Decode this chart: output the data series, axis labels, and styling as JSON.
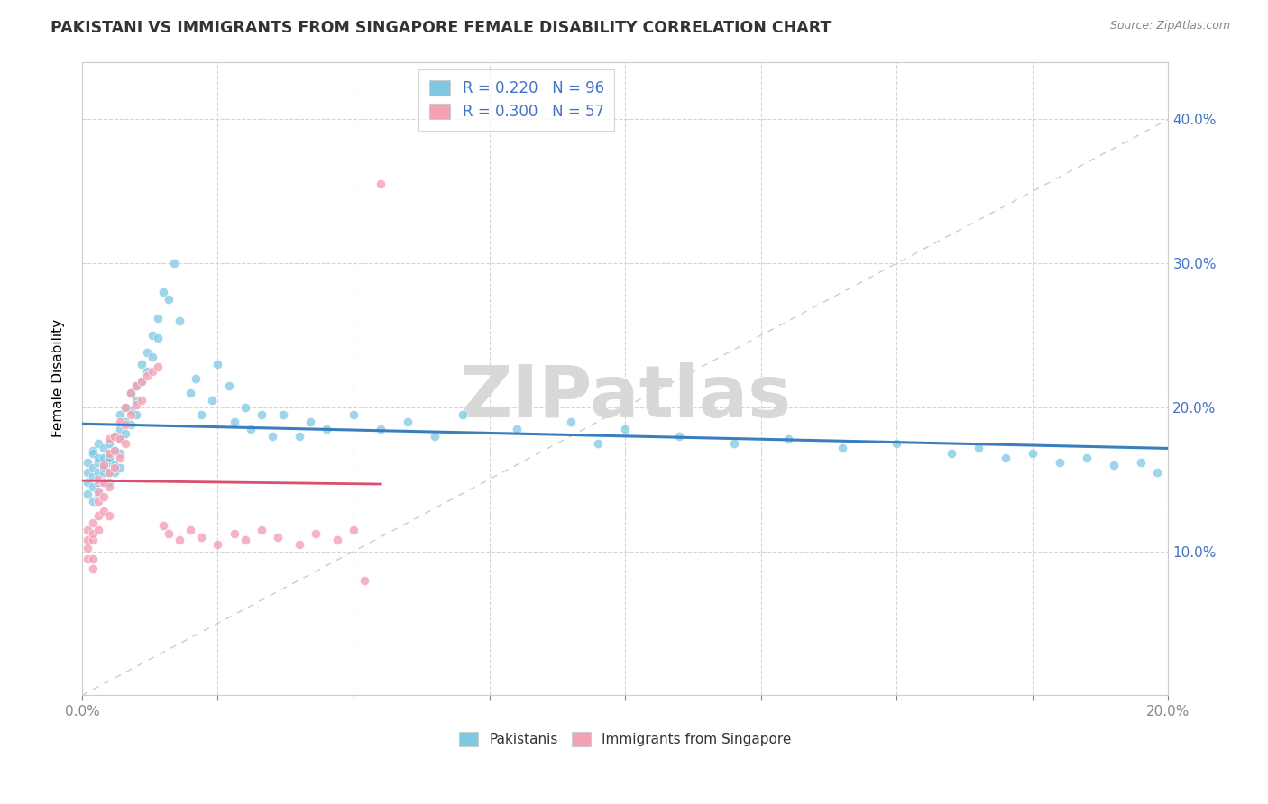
{
  "title": "PAKISTANI VS IMMIGRANTS FROM SINGAPORE FEMALE DISABILITY CORRELATION CHART",
  "source": "Source: ZipAtlas.com",
  "ylabel": "Female Disability",
  "xlim": [
    0.0,
    0.2
  ],
  "ylim": [
    0.0,
    0.44
  ],
  "blue_color": "#7ec8e3",
  "pink_color": "#f4a0b5",
  "blue_line_color": "#3a7ebf",
  "pink_line_color": "#d94f70",
  "ref_line_color": "#cccccc",
  "watermark_text": "ZIPatlas",
  "watermark_color": "#d8d8d8",
  "watermark_fontsize": 58,
  "pakistanis_x": [
    0.001,
    0.001,
    0.001,
    0.001,
    0.002,
    0.002,
    0.002,
    0.002,
    0.002,
    0.002,
    0.003,
    0.003,
    0.003,
    0.003,
    0.003,
    0.003,
    0.004,
    0.004,
    0.004,
    0.004,
    0.004,
    0.004,
    0.005,
    0.005,
    0.005,
    0.005,
    0.005,
    0.005,
    0.006,
    0.006,
    0.006,
    0.006,
    0.007,
    0.007,
    0.007,
    0.007,
    0.007,
    0.008,
    0.008,
    0.008,
    0.009,
    0.009,
    0.009,
    0.01,
    0.01,
    0.01,
    0.011,
    0.011,
    0.012,
    0.012,
    0.013,
    0.013,
    0.014,
    0.014,
    0.015,
    0.016,
    0.017,
    0.018,
    0.02,
    0.021,
    0.022,
    0.024,
    0.025,
    0.027,
    0.028,
    0.03,
    0.031,
    0.033,
    0.035,
    0.037,
    0.04,
    0.042,
    0.045,
    0.05,
    0.055,
    0.06,
    0.065,
    0.07,
    0.08,
    0.09,
    0.095,
    0.1,
    0.11,
    0.12,
    0.13,
    0.14,
    0.15,
    0.16,
    0.165,
    0.17,
    0.175,
    0.18,
    0.185,
    0.19,
    0.195,
    0.198
  ],
  "pakistanis_y": [
    0.155,
    0.162,
    0.148,
    0.14,
    0.17,
    0.158,
    0.145,
    0.135,
    0.152,
    0.168,
    0.175,
    0.162,
    0.155,
    0.148,
    0.14,
    0.165,
    0.172,
    0.16,
    0.155,
    0.148,
    0.165,
    0.158,
    0.175,
    0.168,
    0.162,
    0.155,
    0.148,
    0.165,
    0.18,
    0.17,
    0.16,
    0.155,
    0.195,
    0.185,
    0.178,
    0.168,
    0.158,
    0.2,
    0.19,
    0.182,
    0.21,
    0.198,
    0.188,
    0.215,
    0.205,
    0.195,
    0.23,
    0.218,
    0.238,
    0.225,
    0.25,
    0.235,
    0.262,
    0.248,
    0.28,
    0.275,
    0.3,
    0.26,
    0.21,
    0.22,
    0.195,
    0.205,
    0.23,
    0.215,
    0.19,
    0.2,
    0.185,
    0.195,
    0.18,
    0.195,
    0.18,
    0.19,
    0.185,
    0.195,
    0.185,
    0.19,
    0.18,
    0.195,
    0.185,
    0.19,
    0.175,
    0.185,
    0.18,
    0.175,
    0.178,
    0.172,
    0.175,
    0.168,
    0.172,
    0.165,
    0.168,
    0.162,
    0.165,
    0.16,
    0.162,
    0.155
  ],
  "singapore_x": [
    0.001,
    0.001,
    0.001,
    0.001,
    0.002,
    0.002,
    0.002,
    0.002,
    0.002,
    0.003,
    0.003,
    0.003,
    0.003,
    0.003,
    0.004,
    0.004,
    0.004,
    0.004,
    0.005,
    0.005,
    0.005,
    0.005,
    0.005,
    0.006,
    0.006,
    0.006,
    0.007,
    0.007,
    0.007,
    0.008,
    0.008,
    0.008,
    0.009,
    0.009,
    0.01,
    0.01,
    0.011,
    0.011,
    0.012,
    0.013,
    0.014,
    0.015,
    0.016,
    0.018,
    0.02,
    0.022,
    0.025,
    0.028,
    0.03,
    0.033,
    0.036,
    0.04,
    0.043,
    0.047,
    0.05,
    0.052,
    0.055
  ],
  "singapore_y": [
    0.108,
    0.115,
    0.095,
    0.102,
    0.12,
    0.108,
    0.095,
    0.088,
    0.112,
    0.15,
    0.142,
    0.135,
    0.125,
    0.115,
    0.16,
    0.148,
    0.138,
    0.128,
    0.168,
    0.178,
    0.155,
    0.145,
    0.125,
    0.18,
    0.17,
    0.158,
    0.19,
    0.178,
    0.165,
    0.2,
    0.188,
    0.175,
    0.21,
    0.195,
    0.215,
    0.202,
    0.218,
    0.205,
    0.222,
    0.225,
    0.228,
    0.118,
    0.112,
    0.108,
    0.115,
    0.11,
    0.105,
    0.112,
    0.108,
    0.115,
    0.11,
    0.105,
    0.112,
    0.108,
    0.115,
    0.08,
    0.355
  ]
}
